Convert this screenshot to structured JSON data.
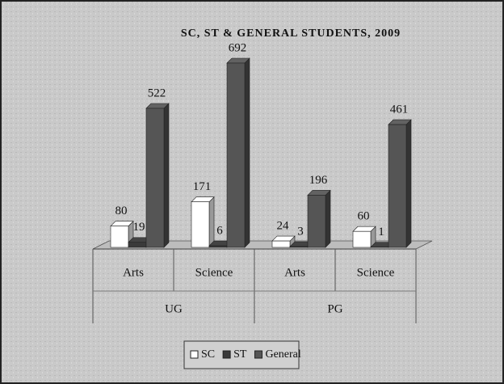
{
  "chart_data": {
    "type": "bar3d",
    "title": "SC, ST & GENERAL STUDENTS, 2009",
    "groups": [
      {
        "name": "UG",
        "categories": [
          "Arts",
          "Science"
        ]
      },
      {
        "name": "PG",
        "categories": [
          "Arts",
          "Science"
        ]
      }
    ],
    "series": [
      {
        "name": "SC",
        "color": "#ffffff",
        "values": [
          80,
          171,
          24,
          60
        ]
      },
      {
        "name": "ST",
        "color": "#3a3a3a",
        "values": [
          19,
          6,
          3,
          1
        ]
      },
      {
        "name": "General",
        "color": "#555555",
        "values": [
          522,
          692,
          196,
          461
        ]
      }
    ],
    "legend": "bottom"
  }
}
